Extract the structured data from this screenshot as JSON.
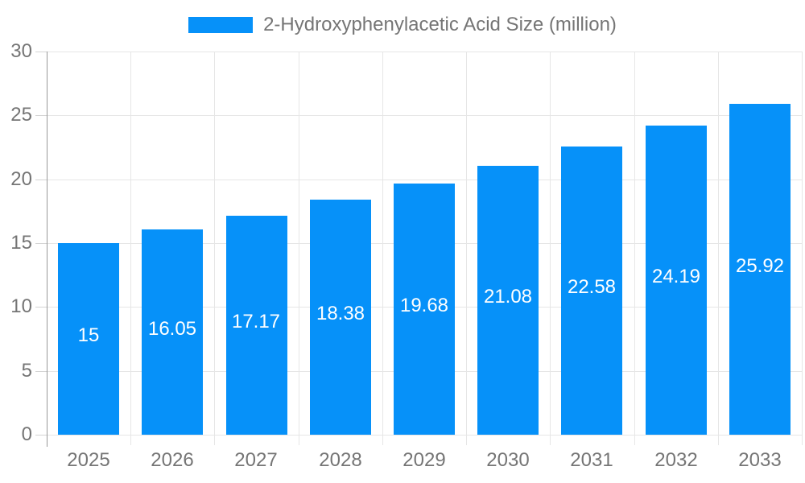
{
  "chart_data": {
    "type": "bar",
    "title": "2-Hydroxyphenylacetic Acid Size (million)",
    "legend": {
      "position": "top",
      "entries": [
        "2-Hydroxyphenylacetic Acid Size (million)"
      ]
    },
    "categories": [
      "2025",
      "2026",
      "2027",
      "2028",
      "2029",
      "2030",
      "2031",
      "2032",
      "2033"
    ],
    "values": [
      15,
      16.05,
      17.17,
      18.38,
      19.68,
      21.08,
      22.58,
      24.19,
      25.92
    ],
    "value_labels": [
      "15",
      "16.05",
      "17.17",
      "18.38",
      "19.68",
      "21.08",
      "22.58",
      "24.19",
      "25.92"
    ],
    "xlabel": "",
    "ylabel": "",
    "ylim": [
      0,
      30
    ],
    "yticks": [
      0,
      5,
      10,
      15,
      20,
      25,
      30
    ],
    "ytick_labels": [
      "0",
      "5",
      "10",
      "15",
      "20",
      "25",
      "30"
    ],
    "grid": true,
    "colors": {
      "bar": "#0691f9",
      "label_text": "#757575",
      "value_text": "#ffffff",
      "gridline": "#e6e6e6",
      "axis_line": "#999999",
      "tick": "#d4d4d4",
      "background": "#ffffff"
    }
  }
}
